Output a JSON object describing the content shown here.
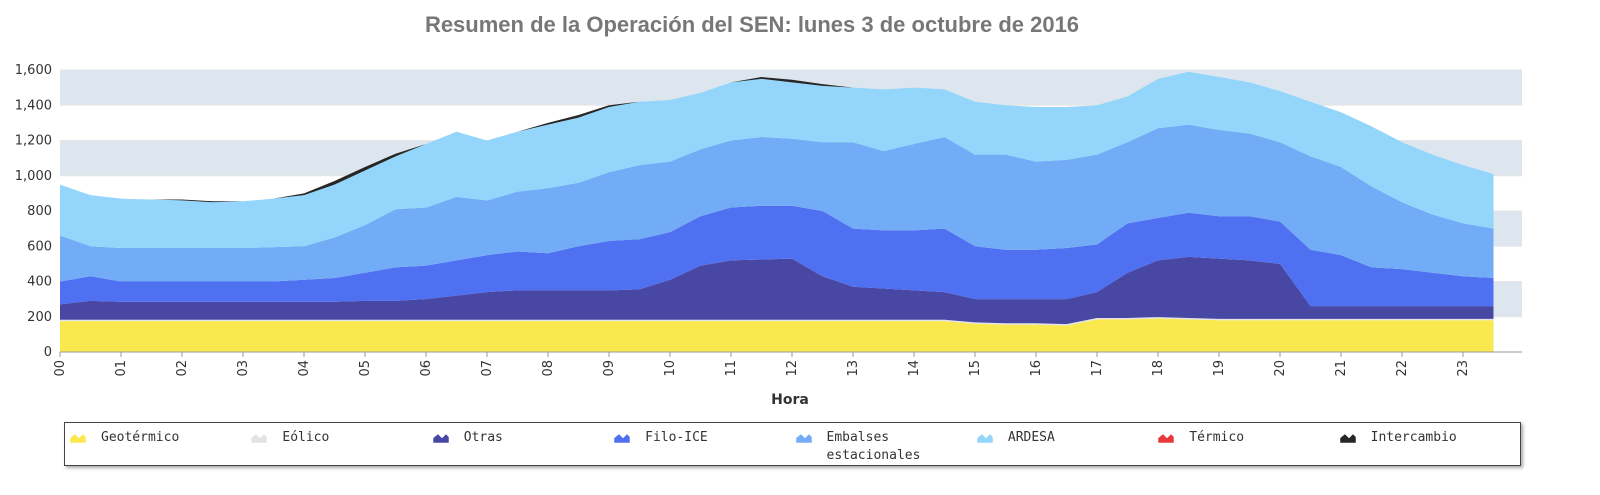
{
  "chart_data": {
    "type": "stacked-area",
    "title": "Resumen de la Operación del SEN: lunes 3 de octubre de 2016",
    "x_label": "Hora",
    "categories": [
      "00",
      null,
      "01",
      null,
      "02",
      null,
      "03",
      null,
      "04",
      null,
      "05",
      null,
      "06",
      null,
      "07",
      null,
      "08",
      null,
      "09",
      null,
      "10",
      null,
      "11",
      null,
      "12",
      null,
      "13",
      null,
      "14",
      null,
      "15",
      null,
      "16",
      null,
      "17",
      null,
      "18",
      null,
      "19",
      null,
      "20",
      null,
      "21",
      null,
      "22",
      null,
      "23",
      null
    ],
    "ylim": [
      0,
      1600
    ],
    "yticks": [
      0,
      200,
      400,
      600,
      800,
      {
        "value": 1000,
        "label": "1,000"
      },
      {
        "value": 1200,
        "label": "1,200"
      },
      {
        "value": 1400,
        "label": "1,400"
      },
      {
        "value": 1600,
        "label": "1,600"
      }
    ],
    "grid": true,
    "series": [
      {
        "name": "Geotérmico",
        "color": "#f9e84e",
        "values": [
          175,
          175,
          175,
          175,
          175,
          175,
          175,
          175,
          175,
          175,
          175,
          175,
          175,
          175,
          175,
          175,
          175,
          175,
          175,
          175,
          175,
          175,
          175,
          175,
          175,
          175,
          175,
          175,
          175,
          175,
          160,
          155,
          155,
          150,
          185,
          185,
          190,
          185,
          180,
          180,
          180,
          180,
          180,
          180,
          180,
          180,
          180,
          180
        ]
      },
      {
        "name": "Eólico",
        "color": "#e4e4e4",
        "values": [
          8,
          8,
          8,
          8,
          8,
          8,
          8,
          8,
          8,
          8,
          8,
          8,
          8,
          8,
          8,
          8,
          8,
          8,
          8,
          8,
          8,
          8,
          8,
          8,
          8,
          8,
          8,
          8,
          8,
          8,
          8,
          8,
          8,
          8,
          8,
          8,
          8,
          8,
          8,
          8,
          8,
          8,
          8,
          8,
          8,
          8,
          8,
          8
        ]
      },
      {
        "name": "Otras",
        "color": "#4848a4",
        "values": [
          87,
          107,
          102,
          102,
          102,
          102,
          102,
          102,
          102,
          102,
          107,
          107,
          117,
          137,
          157,
          167,
          167,
          167,
          167,
          172,
          227,
          307,
          337,
          342,
          347,
          247,
          187,
          177,
          167,
          157,
          132,
          137,
          137,
          142,
          147,
          257,
          322,
          347,
          342,
          332,
          312,
          72,
          72,
          72,
          72,
          72,
          72,
          72
        ]
      },
      {
        "name": "Filo-ICE",
        "color": "#5070f2",
        "values": [
          130,
          140,
          115,
          115,
          115,
          115,
          115,
          115,
          125,
          135,
          160,
          190,
          190,
          200,
          210,
          220,
          210,
          250,
          280,
          285,
          270,
          280,
          300,
          305,
          300,
          370,
          330,
          330,
          340,
          360,
          300,
          280,
          280,
          290,
          270,
          280,
          240,
          250,
          240,
          250,
          240,
          320,
          290,
          220,
          210,
          190,
          170,
          160
        ]
      },
      {
        "name": "Embalses estacionales",
        "color": "#72acf6",
        "values": [
          260,
          170,
          190,
          190,
          190,
          190,
          190,
          195,
          190,
          230,
          270,
          330,
          330,
          360,
          310,
          340,
          370,
          360,
          390,
          420,
          400,
          380,
          380,
          390,
          380,
          390,
          490,
          450,
          490,
          520,
          520,
          540,
          500,
          500,
          510,
          460,
          510,
          500,
          490,
          470,
          450,
          530,
          500,
          460,
          380,
          330,
          300,
          280
        ]
      },
      {
        "name": "ARDESA",
        "color": "#94d6fb",
        "values": [
          290,
          290,
          280,
          275,
          270,
          260,
          265,
          275,
          290,
          300,
          310,
          300,
          360,
          370,
          340,
          340,
          360,
          370,
          370,
          360,
          350,
          320,
          330,
          330,
          320,
          320,
          310,
          350,
          320,
          270,
          300,
          280,
          310,
          300,
          280,
          260,
          280,
          300,
          300,
          290,
          290,
          310,
          310,
          340,
          340,
          340,
          330,
          310
        ]
      },
      {
        "name": "Térmico",
        "color": "#e83a3a",
        "values": [
          0,
          0,
          0,
          0,
          0,
          0,
          0,
          0,
          0,
          0,
          0,
          0,
          0,
          0,
          0,
          0,
          0,
          0,
          0,
          0,
          0,
          0,
          0,
          0,
          0,
          0,
          0,
          0,
          0,
          0,
          0,
          0,
          0,
          0,
          0,
          0,
          0,
          0,
          0,
          0,
          0,
          0,
          0,
          0,
          0,
          0,
          0,
          0
        ]
      },
      {
        "name": "Intercambio",
        "color": "#262626",
        "values": [
          0,
          0,
          0,
          0,
          5,
          5,
          0,
          0,
          10,
          20,
          20,
          15,
          0,
          0,
          0,
          0,
          10,
          15,
          10,
          0,
          0,
          0,
          0,
          10,
          15,
          10,
          0,
          0,
          0,
          0,
          0,
          0,
          0,
          0,
          0,
          0,
          0,
          0,
          0,
          0,
          0,
          0,
          0,
          0,
          0,
          0,
          0,
          0
        ]
      }
    ]
  }
}
